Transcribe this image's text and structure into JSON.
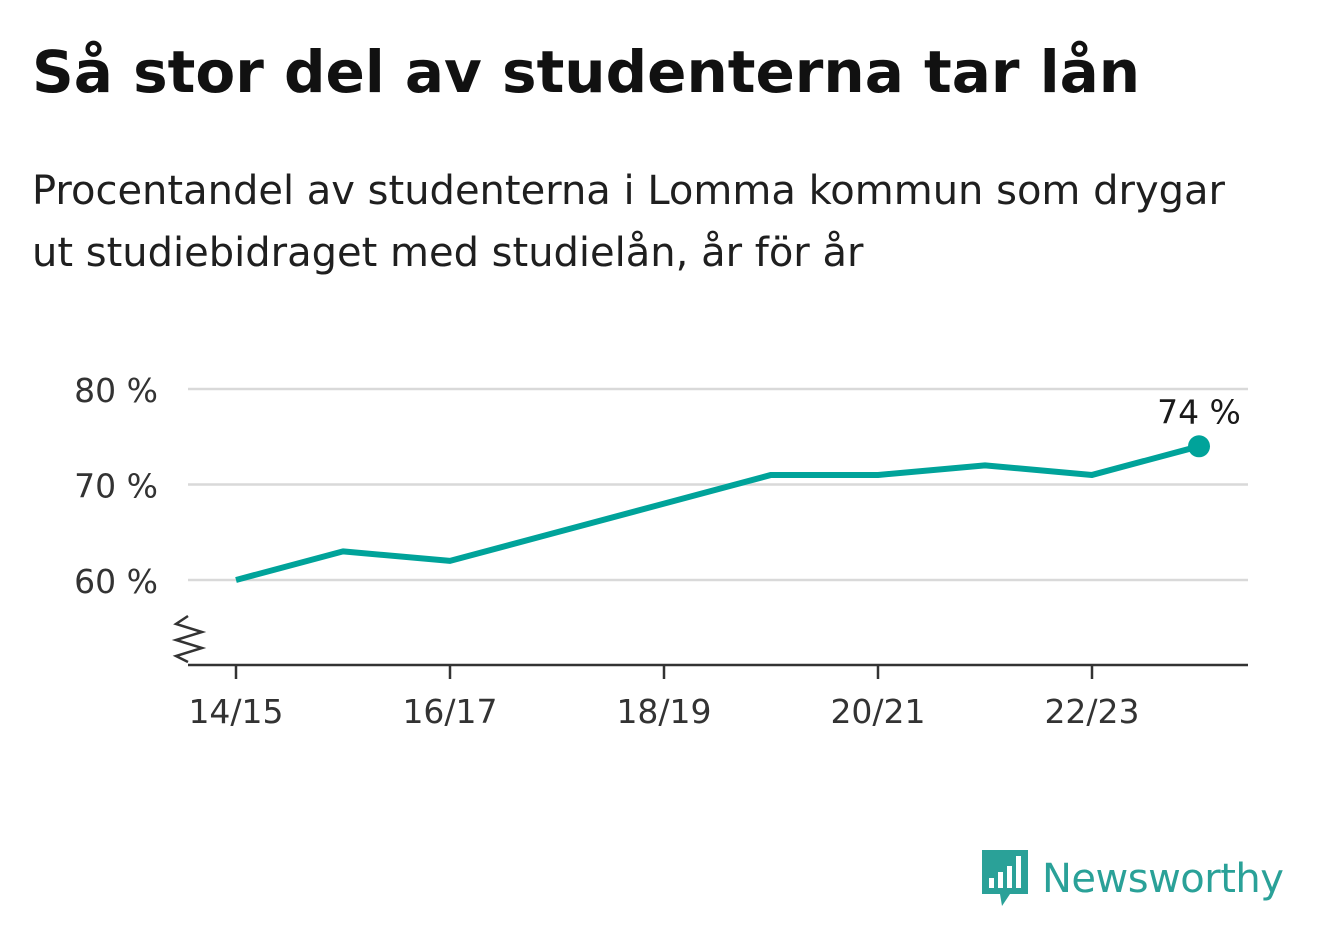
{
  "title": "Så stor del av studenterna tar lån",
  "subtitle": "Procentandel av studenterna i Lomma kommun som drygar ut studiebidraget med studielån, år för år",
  "brand": {
    "name": "Newsworthy",
    "icon": "newsworthy-logo-icon",
    "color": "#2aa198"
  },
  "colors": {
    "line": "#00a39a",
    "grid": "#d9d9d9",
    "axis": "#333333",
    "text": "#333333"
  },
  "chart_data": {
    "type": "line",
    "x": [
      "14/15",
      "15/16",
      "16/17",
      "17/18",
      "18/19",
      "19/20",
      "20/21",
      "21/22",
      "22/23",
      "23/24"
    ],
    "x_tick_labels": [
      "14/15",
      "16/17",
      "18/19",
      "20/21",
      "22/23"
    ],
    "series": [
      {
        "values": [
          60,
          63,
          62,
          65,
          68,
          71,
          71,
          72,
          71,
          74
        ]
      }
    ],
    "y_ticks": [
      60,
      70,
      80
    ],
    "y_tick_labels": [
      "60 %",
      "70 %",
      "80 %"
    ],
    "ylim": [
      51,
      80
    ],
    "y_axis_broken": true,
    "grid": true,
    "end_label": "74 %"
  }
}
